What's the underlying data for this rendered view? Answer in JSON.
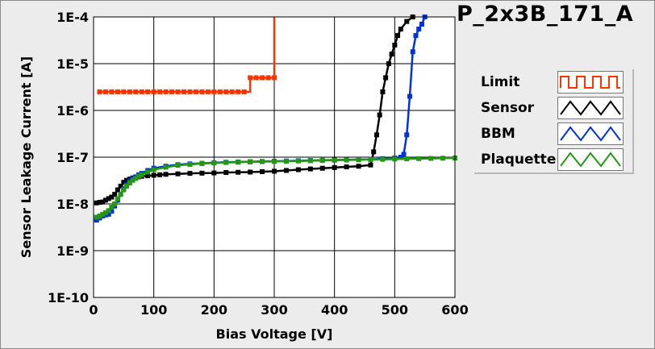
{
  "chart_data": {
    "type": "line",
    "title": "P_2x3B_171_A",
    "xlabel": "Bias Voltage [V]",
    "ylabel": "Sensor Leakage Current [A]",
    "xlim": [
      0,
      600
    ],
    "ylim": [
      1e-10,
      0.0001
    ],
    "yscale": "log",
    "grid": true,
    "legend_position": "right",
    "x_ticks": [
      0,
      100,
      200,
      300,
      400,
      500,
      600
    ],
    "x_tick_labels": [
      "0",
      "100",
      "200",
      "300",
      "400",
      "500",
      "600"
    ],
    "y_ticks": [
      1e-10,
      1e-09,
      1e-08,
      1e-07,
      1e-06,
      1e-05,
      0.0001
    ],
    "y_tick_labels": [
      "1E-10",
      "1E-9",
      "1E-8",
      "1E-7",
      "1E-6",
      "1E-5",
      "1E-4"
    ],
    "series": [
      {
        "name": "Limit",
        "color": "#ff3300",
        "step": true,
        "x": [
          10,
          20,
          30,
          40,
          50,
          60,
          70,
          80,
          90,
          100,
          110,
          120,
          130,
          140,
          150,
          160,
          170,
          180,
          190,
          200,
          210,
          220,
          230,
          240,
          250,
          260,
          270,
          280,
          290,
          300,
          300
        ],
        "y": [
          2.5e-06,
          2.5e-06,
          2.5e-06,
          2.5e-06,
          2.5e-06,
          2.5e-06,
          2.5e-06,
          2.5e-06,
          2.5e-06,
          2.5e-06,
          2.5e-06,
          2.5e-06,
          2.5e-06,
          2.5e-06,
          2.5e-06,
          2.5e-06,
          2.5e-06,
          2.5e-06,
          2.5e-06,
          2.5e-06,
          2.5e-06,
          2.5e-06,
          2.5e-06,
          2.5e-06,
          2.5e-06,
          5e-06,
          5e-06,
          5e-06,
          5e-06,
          5e-06,
          0.0001
        ]
      },
      {
        "name": "Sensor",
        "color": "#000000",
        "step": false,
        "x": [
          5,
          10,
          15,
          20,
          25,
          30,
          35,
          40,
          45,
          50,
          55,
          60,
          65,
          70,
          75,
          80,
          90,
          100,
          110,
          120,
          140,
          160,
          180,
          200,
          220,
          240,
          260,
          280,
          300,
          320,
          340,
          360,
          380,
          400,
          420,
          440,
          460,
          465,
          470,
          475,
          480,
          485,
          490,
          495,
          500,
          505,
          510,
          520,
          530
        ],
        "y": [
          1.05e-08,
          1.08e-08,
          1.1e-08,
          1.2e-08,
          1.3e-08,
          1.4e-08,
          1.6e-08,
          2e-08,
          2.4e-08,
          2.9e-08,
          3.2e-08,
          3.4e-08,
          3.6e-08,
          3.7e-08,
          3.8e-08,
          3.9e-08,
          4e-08,
          4.1e-08,
          4.2e-08,
          4.3e-08,
          4.4e-08,
          4.5e-08,
          4.55e-08,
          4.6e-08,
          4.7e-08,
          4.75e-08,
          4.8e-08,
          4.9e-08,
          5e-08,
          5.2e-08,
          5.4e-08,
          5.6e-08,
          5.8e-08,
          6e-08,
          6.2e-08,
          6.4e-08,
          6.8e-08,
          1.3e-07,
          3e-07,
          8e-07,
          2.5e-06,
          5e-06,
          1e-05,
          1.6e-05,
          2.5e-05,
          4e-05,
          5.5e-05,
          8e-05,
          0.0001
        ]
      },
      {
        "name": "BBM",
        "color": "#0033dd",
        "step": false,
        "x": [
          5,
          10,
          15,
          20,
          25,
          30,
          35,
          40,
          45,
          50,
          55,
          60,
          65,
          70,
          75,
          80,
          90,
          100,
          120,
          140,
          160,
          180,
          200,
          220,
          240,
          260,
          280,
          300,
          320,
          340,
          360,
          380,
          400,
          420,
          440,
          460,
          480,
          500,
          510,
          515,
          520,
          525,
          530,
          535,
          540,
          545,
          550
        ],
        "y": [
          4.5e-09,
          5e-09,
          5.5e-09,
          5.8e-09,
          6e-09,
          7e-09,
          9e-09,
          1.2e-08,
          1.6e-08,
          2.1e-08,
          2.6e-08,
          3.1e-08,
          3.5e-08,
          3.8e-08,
          4.2e-08,
          4.5e-08,
          5.2e-08,
          5.8e-08,
          6.4e-08,
          6.9e-08,
          7.2e-08,
          7.4e-08,
          7.6e-08,
          7.8e-08,
          7.9e-08,
          8e-08,
          8.1e-08,
          8.2e-08,
          8.3e-08,
          8.4e-08,
          8.5e-08,
          8.6e-08,
          8.7e-08,
          8.8e-08,
          8.9e-08,
          9e-08,
          9.3e-08,
          9.6e-08,
          1e-07,
          1.15e-07,
          3e-07,
          2e-06,
          1.8e-05,
          4e-05,
          5.5e-05,
          7e-05,
          0.0001
        ]
      },
      {
        "name": "Plaquette",
        "color": "#229911",
        "step": false,
        "x": [
          5,
          10,
          15,
          20,
          25,
          30,
          35,
          40,
          45,
          50,
          55,
          60,
          65,
          70,
          75,
          80,
          90,
          100,
          120,
          140,
          160,
          180,
          200,
          220,
          240,
          260,
          280,
          300,
          320,
          340,
          360,
          380,
          400,
          420,
          440,
          460,
          480,
          500,
          520,
          540,
          560,
          580,
          600
        ],
        "y": [
          5.2e-09,
          5.5e-09,
          6e-09,
          6.5e-09,
          7.2e-09,
          8.5e-09,
          1e-08,
          1.3e-08,
          1.6e-08,
          2e-08,
          2.4e-08,
          2.8e-08,
          3.2e-08,
          3.5e-08,
          3.9e-08,
          4.2e-08,
          4.8e-08,
          5.4e-08,
          6.1e-08,
          6.7e-08,
          7e-08,
          7.3e-08,
          7.5e-08,
          7.7e-08,
          7.8e-08,
          7.9e-08,
          8e-08,
          8.1e-08,
          8.2e-08,
          8.3e-08,
          8.4e-08,
          8.5e-08,
          8.6e-08,
          8.7e-08,
          8.8e-08,
          8.9e-08,
          9e-08,
          9.1e-08,
          9.2e-08,
          9.3e-08,
          9.4e-08,
          9.5e-08,
          9.6e-08
        ]
      }
    ]
  }
}
